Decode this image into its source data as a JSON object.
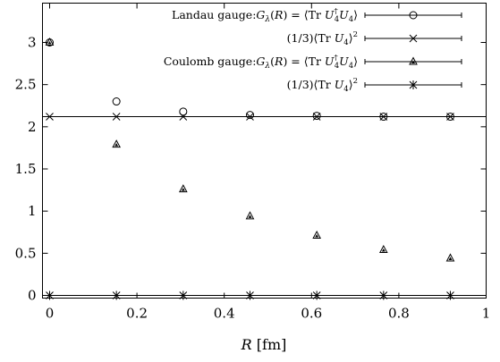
{
  "chart_data": {
    "type": "scatter",
    "xlabel_italic": "R",
    "xlabel_unit": " [fm]",
    "xlim": [
      0,
      1
    ],
    "ylim": [
      0,
      3.45
    ],
    "xticks": [
      {
        "value": 0,
        "label": "0"
      },
      {
        "value": 0.2,
        "label": "0.2"
      },
      {
        "value": 0.4,
        "label": "0.4"
      },
      {
        "value": 0.6,
        "label": "0.6"
      },
      {
        "value": 0.8,
        "label": "0.8"
      },
      {
        "value": 1,
        "label": "1"
      }
    ],
    "yticks": [
      {
        "value": 0,
        "label": "0"
      },
      {
        "value": 0.5,
        "label": "0.5"
      },
      {
        "value": 1,
        "label": "1"
      },
      {
        "value": 1.5,
        "label": "1.5"
      },
      {
        "value": 2,
        "label": "2"
      },
      {
        "value": 2.5,
        "label": "2.5"
      },
      {
        "value": 3,
        "label": "3"
      }
    ],
    "grid": false,
    "legend_position": "top-right",
    "horizontal_lines": [
      2.12,
      0
    ],
    "series": [
      {
        "name": "Landau gauge: Gλ(R) = ⟨Tr U4† U4⟩",
        "marker": "circle",
        "x": [
          0,
          0.153,
          0.306,
          0.459,
          0.612,
          0.765,
          0.918
        ],
        "y": [
          3.0,
          2.3,
          2.18,
          2.14,
          2.13,
          2.12,
          2.12
        ]
      },
      {
        "name": "(1/3)⟨Tr U4⟩²",
        "marker": "cross",
        "x": [
          0,
          0.153,
          0.306,
          0.459,
          0.612,
          0.765,
          0.918
        ],
        "y": [
          2.12,
          2.12,
          2.12,
          2.12,
          2.12,
          2.12,
          2.12
        ]
      },
      {
        "name": "Coulomb gauge: Gλ(R) = ⟨Tr U4† U4⟩",
        "marker": "triangle",
        "x": [
          0,
          0.153,
          0.306,
          0.459,
          0.612,
          0.765,
          0.918
        ],
        "y": [
          3.0,
          1.79,
          1.26,
          0.94,
          0.71,
          0.54,
          0.44
        ]
      },
      {
        "name": "(1/3)⟨Tr U4⟩²",
        "marker": "star",
        "x": [
          0,
          0.153,
          0.306,
          0.459,
          0.612,
          0.765,
          0.918
        ],
        "y": [
          0,
          0,
          0,
          0,
          0,
          0,
          0
        ]
      }
    ]
  }
}
